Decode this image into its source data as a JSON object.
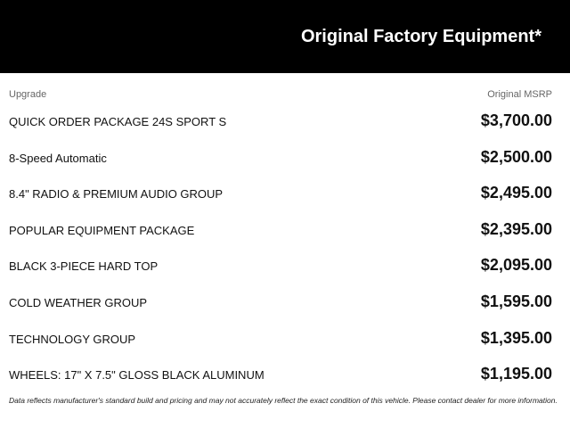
{
  "header": {
    "title": "Original Factory Equipment*"
  },
  "columns": {
    "upgrade": "Upgrade",
    "msrp": "Original MSRP"
  },
  "items": [
    {
      "name": "QUICK ORDER PACKAGE 24S SPORT S",
      "price": "$3,700.00"
    },
    {
      "name": "8-Speed Automatic",
      "price": "$2,500.00"
    },
    {
      "name": "8.4\" RADIO & PREMIUM AUDIO GROUP",
      "price": "$2,495.00"
    },
    {
      "name": "POPULAR EQUIPMENT PACKAGE",
      "price": "$2,395.00"
    },
    {
      "name": "BLACK 3-PIECE HARD TOP",
      "price": "$2,095.00"
    },
    {
      "name": "COLD WEATHER GROUP",
      "price": "$1,595.00"
    },
    {
      "name": "TECHNOLOGY GROUP",
      "price": "$1,395.00"
    },
    {
      "name": "WHEELS: 17\" X 7.5\" GLOSS BLACK ALUMINUM",
      "price": "$1,195.00"
    }
  ],
  "disclaimer": "Data reflects manufacturer's standard build and pricing and may not accurately reflect the exact condition of this vehicle. Please contact dealer for more information."
}
